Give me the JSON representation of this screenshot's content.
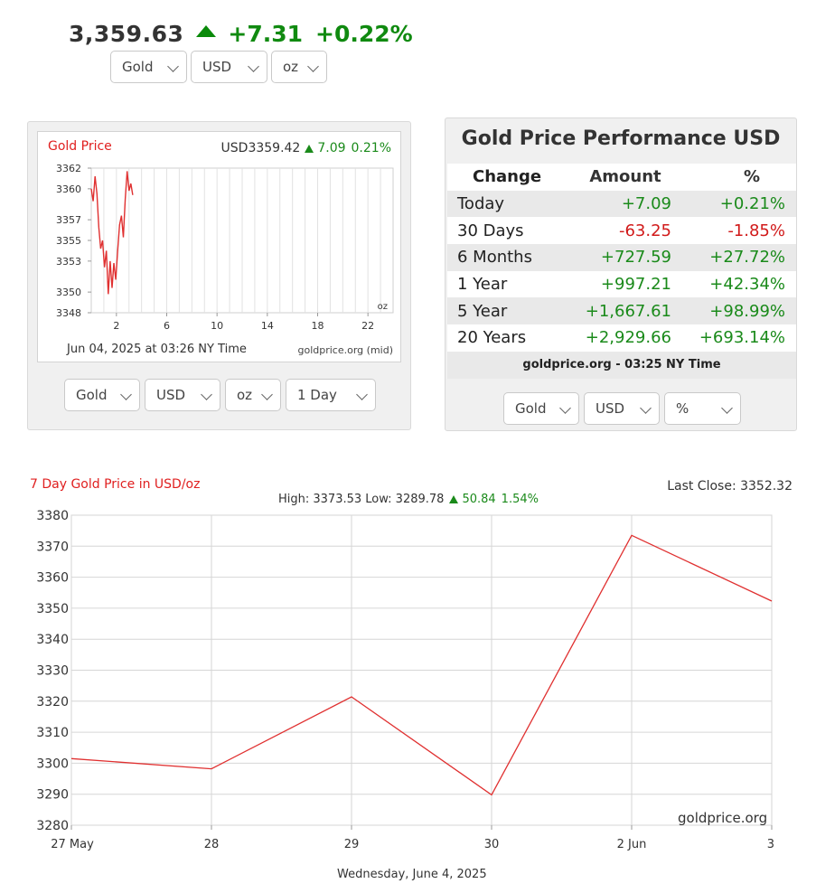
{
  "ticker": {
    "price": "3,359.63",
    "change": "+7.31",
    "pct": "+0.22%",
    "direction": "up"
  },
  "top_selects": {
    "metal": "Gold",
    "currency": "USD",
    "unit": "oz"
  },
  "mini_chart": {
    "title": "Gold Price",
    "quote_price": "USD3359.42",
    "quote_change": "7.09",
    "quote_pct": "0.21%",
    "timestamp": "Jun 04, 2025 at 03:26 NY Time",
    "source": "goldprice.org (mid)",
    "unit_label": "oz",
    "chart_data": {
      "type": "line",
      "ylim": [
        3348,
        3362
      ],
      "xlim": [
        0,
        24
      ],
      "x_ticks": [
        2,
        6,
        10,
        14,
        18,
        22
      ],
      "y_ticks": [
        3348,
        3350,
        3353,
        3355,
        3357,
        3360,
        3362
      ],
      "series": [
        {
          "x": [
            0.0,
            0.15,
            0.3,
            0.45,
            0.6,
            0.75,
            0.9,
            1.05,
            1.2,
            1.35,
            1.5,
            1.65,
            1.8,
            1.95,
            2.1,
            2.25,
            2.4,
            2.55,
            2.7,
            2.85,
            3.0,
            3.15,
            3.3
          ],
          "values": [
            3360.0,
            3358.8,
            3361.2,
            3359.5,
            3356.3,
            3354.2,
            3355.0,
            3352.4,
            3354.0,
            3349.8,
            3353.0,
            3350.4,
            3352.8,
            3351.2,
            3354.0,
            3356.5,
            3357.4,
            3355.3,
            3359.0,
            3361.7,
            3359.8,
            3360.5,
            3359.4
          ]
        }
      ]
    }
  },
  "mini_selects": {
    "metal": "Gold",
    "currency": "USD",
    "unit": "oz",
    "range": "1 Day"
  },
  "performance": {
    "title": "Gold Price Performance USD",
    "headers": {
      "change": "Change",
      "amount": "Amount",
      "pct": "%"
    },
    "rows": [
      {
        "label": "Today",
        "amount": "+7.09",
        "pct": "+0.21%",
        "sign": "pos"
      },
      {
        "label": "30 Days",
        "amount": "-63.25",
        "pct": "-1.85%",
        "sign": "neg"
      },
      {
        "label": "6 Months",
        "amount": "+727.59",
        "pct": "+27.72%",
        "sign": "pos"
      },
      {
        "label": "1 Year",
        "amount": "+997.21",
        "pct": "+42.34%",
        "sign": "pos"
      },
      {
        "label": "5 Year",
        "amount": "+1,667.61",
        "pct": "+98.99%",
        "sign": "pos"
      },
      {
        "label": "20 Years",
        "amount": "+2,929.66",
        "pct": "+693.14%",
        "sign": "pos"
      }
    ],
    "footer": "goldprice.org - 03:25 NY Time"
  },
  "perf_selects": {
    "metal": "Gold",
    "currency": "USD",
    "mode": "%"
  },
  "big_chart": {
    "title": "7 Day Gold Price in USD/oz",
    "last_close": "Last Close: 3352.32",
    "high_low": "High: 3373.53 Low: 3289.78",
    "change": "50.84",
    "change_pct": "1.54%",
    "date_label": "Wednesday, June 4, 2025",
    "watermark": "goldprice.org",
    "chart_data": {
      "type": "line",
      "categories": [
        "27 May",
        "28",
        "29",
        "30",
        "2 Jun",
        "3"
      ],
      "ylim": [
        3280,
        3380
      ],
      "y_ticks": [
        3280,
        3290,
        3300,
        3310,
        3320,
        3330,
        3340,
        3350,
        3360,
        3370,
        3380
      ],
      "series": [
        {
          "values": [
            3301.5,
            3298.2,
            3321.4,
            3289.8,
            3373.5,
            3352.3
          ]
        }
      ]
    }
  },
  "colors": {
    "up": "#1a8a1a",
    "down": "#d11a1a",
    "line": "#e03030",
    "title_red": "#e02020"
  }
}
